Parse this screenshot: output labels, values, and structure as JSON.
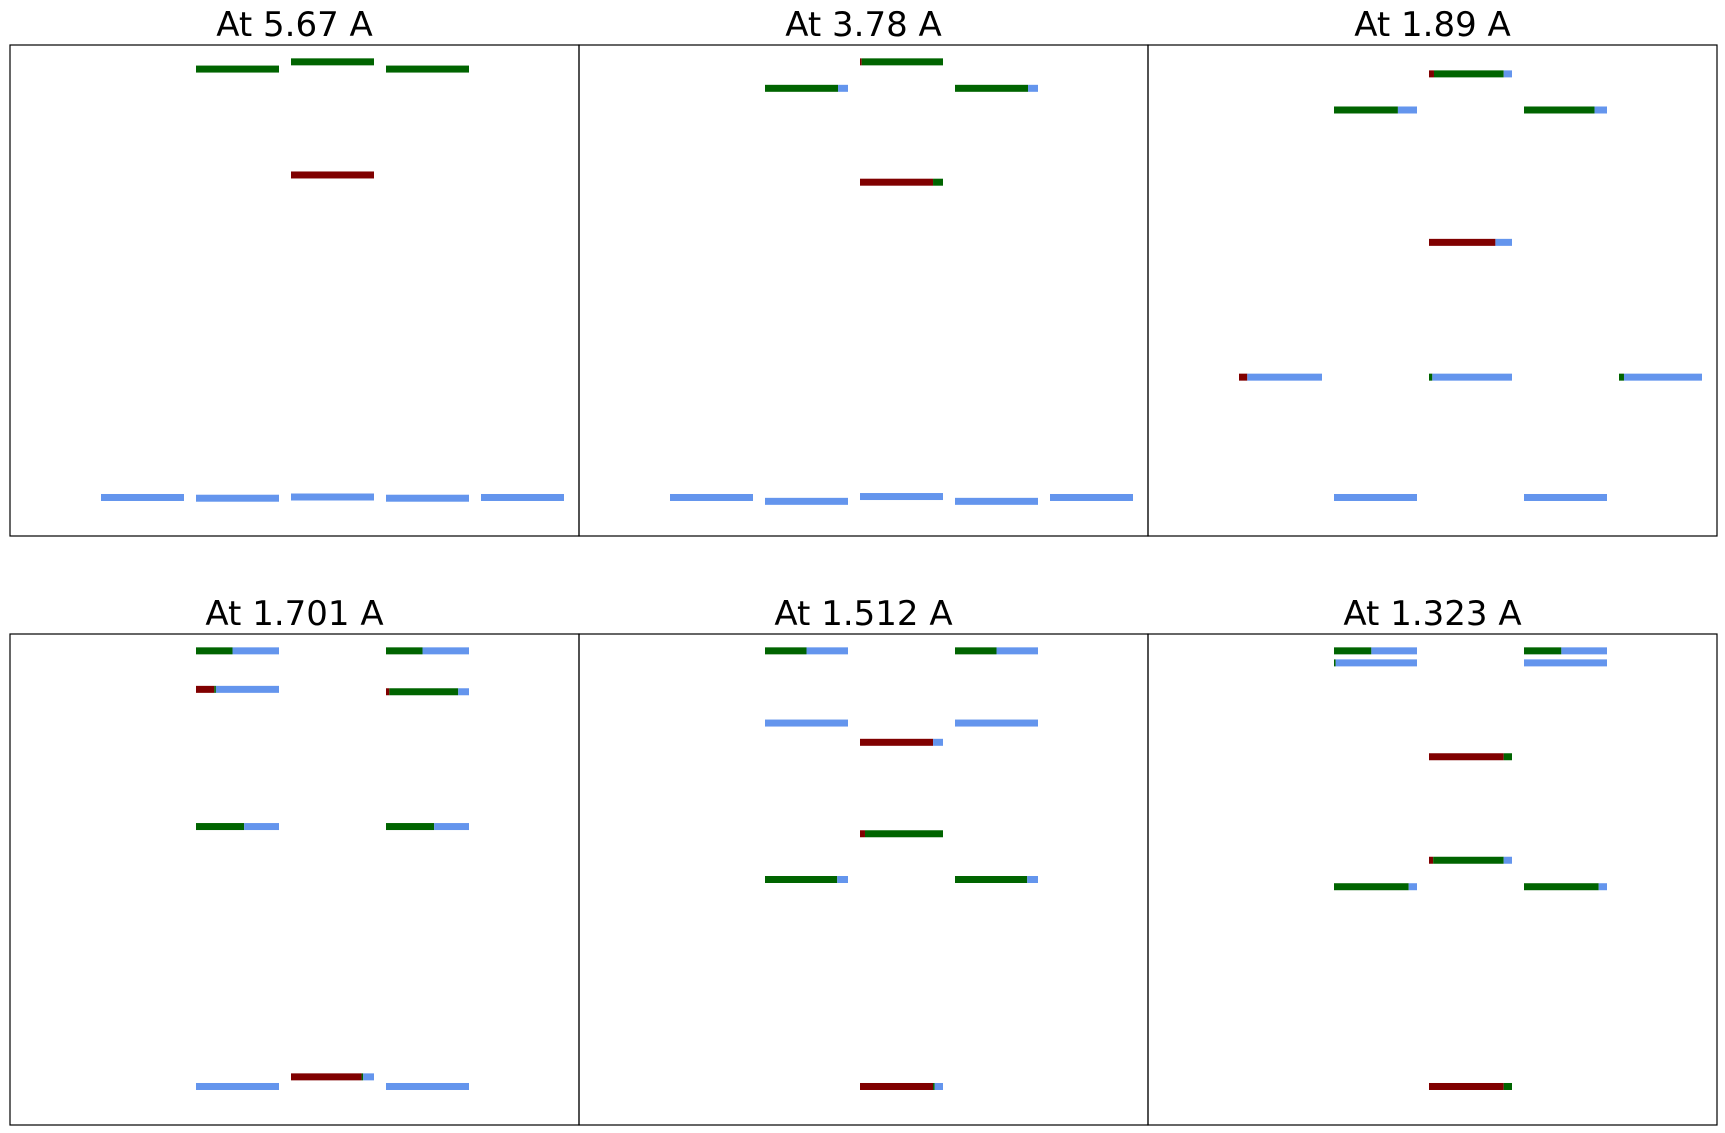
{
  "colors": {
    "red": "#800000",
    "green": "#006400",
    "blue": "#6495ED"
  },
  "chart_data": [
    {
      "type": "stacked-level-diagram",
      "title": "At 5.67 A",
      "levels": [
        {
          "slot": 1,
          "y": 0.0,
          "fractions": {
            "red": 0.0,
            "green": 0.0,
            "blue": 1.0
          }
        },
        {
          "slot": 2,
          "y": -0.015,
          "fractions": {
            "red": 0.0,
            "green": 0.0,
            "blue": 1.0
          }
        },
        {
          "slot": 3,
          "y": 0.01,
          "fractions": {
            "red": 0.0,
            "green": 0.0,
            "blue": 1.0
          }
        },
        {
          "slot": 4,
          "y": -0.015,
          "fractions": {
            "red": 0.0,
            "green": 0.0,
            "blue": 1.0
          }
        },
        {
          "slot": 5,
          "y": 0.0,
          "fractions": {
            "red": 0.0,
            "green": 0.0,
            "blue": 1.0
          }
        },
        {
          "slot": 3,
          "y": 6.7,
          "fractions": {
            "red": 1.0,
            "green": 0.0,
            "blue": 0.0
          }
        },
        {
          "slot": 2,
          "y": 8.9,
          "fractions": {
            "red": 0.0,
            "green": 1.0,
            "blue": 0.0
          }
        },
        {
          "slot": 3,
          "y": 9.05,
          "fractions": {
            "red": 0.0,
            "green": 1.0,
            "blue": 0.0
          }
        },
        {
          "slot": 4,
          "y": 8.9,
          "fractions": {
            "red": 0.0,
            "green": 1.0,
            "blue": 0.0
          }
        }
      ]
    },
    {
      "type": "stacked-level-diagram",
      "title": "At 3.78 A",
      "levels": [
        {
          "slot": 1,
          "y": 0.0,
          "fractions": {
            "red": 0.0,
            "green": 0.0,
            "blue": 1.0
          }
        },
        {
          "slot": 2,
          "y": -0.08,
          "fractions": {
            "red": 0.0,
            "green": 0.0,
            "blue": 1.0
          }
        },
        {
          "slot": 3,
          "y": 0.02,
          "fractions": {
            "red": 0.0,
            "green": 0.0,
            "blue": 1.0
          }
        },
        {
          "slot": 4,
          "y": -0.08,
          "fractions": {
            "red": 0.0,
            "green": 0.0,
            "blue": 1.0
          }
        },
        {
          "slot": 5,
          "y": 0.0,
          "fractions": {
            "red": 0.0,
            "green": 0.0,
            "blue": 1.0
          }
        },
        {
          "slot": 3,
          "y": 6.55,
          "fractions": {
            "red": 0.88,
            "green": 0.12,
            "blue": 0.0
          }
        },
        {
          "slot": 2,
          "y": 8.5,
          "fractions": {
            "red": 0.0,
            "green": 0.88,
            "blue": 0.12
          }
        },
        {
          "slot": 4,
          "y": 8.5,
          "fractions": {
            "red": 0.0,
            "green": 0.88,
            "blue": 0.12
          }
        },
        {
          "slot": 3,
          "y": 9.05,
          "fractions": {
            "red": 0.02,
            "green": 0.98,
            "blue": 0.0
          }
        }
      ]
    },
    {
      "type": "stacked-level-diagram",
      "title": "At 1.89 A",
      "levels": [
        {
          "slot": 2,
          "y": 0.0,
          "fractions": {
            "red": 0.0,
            "green": 0.0,
            "blue": 1.0
          }
        },
        {
          "slot": 4,
          "y": 0.0,
          "fractions": {
            "red": 0.0,
            "green": 0.0,
            "blue": 1.0
          }
        },
        {
          "slot": 1,
          "y": 2.5,
          "fractions": {
            "red": 0.1,
            "green": 0.0,
            "blue": 0.9
          }
        },
        {
          "slot": 3,
          "y": 2.5,
          "fractions": {
            "red": 0.0,
            "green": 0.04,
            "blue": 0.96
          }
        },
        {
          "slot": 5,
          "y": 2.5,
          "fractions": {
            "red": 0.0,
            "green": 0.06,
            "blue": 0.94
          }
        },
        {
          "slot": 3,
          "y": 5.3,
          "fractions": {
            "red": 0.8,
            "green": 0.0,
            "blue": 0.2
          }
        },
        {
          "slot": 2,
          "y": 8.05,
          "fractions": {
            "red": 0.0,
            "green": 0.77,
            "blue": 0.23
          }
        },
        {
          "slot": 4,
          "y": 8.05,
          "fractions": {
            "red": 0.0,
            "green": 0.85,
            "blue": 0.15
          }
        },
        {
          "slot": 3,
          "y": 8.8,
          "fractions": {
            "red": 0.06,
            "green": 0.84,
            "blue": 0.1
          }
        }
      ]
    },
    {
      "type": "stacked-level-diagram",
      "title": "At 1.701 A",
      "levels": [
        {
          "slot": 2,
          "y": 0.0,
          "fractions": {
            "red": 0.0,
            "green": 0.0,
            "blue": 1.0
          }
        },
        {
          "slot": 4,
          "y": 0.0,
          "fractions": {
            "red": 0.0,
            "green": 0.0,
            "blue": 1.0
          }
        },
        {
          "slot": 3,
          "y": 0.2,
          "fractions": {
            "red": 0.85,
            "green": 0.02,
            "blue": 0.13
          }
        },
        {
          "slot": 2,
          "y": 5.4,
          "fractions": {
            "red": 0.0,
            "green": 0.58,
            "blue": 0.42
          }
        },
        {
          "slot": 4,
          "y": 5.4,
          "fractions": {
            "red": 0.0,
            "green": 0.58,
            "blue": 0.42
          }
        },
        {
          "slot": 2,
          "y": 8.25,
          "fractions": {
            "red": 0.22,
            "green": 0.02,
            "blue": 0.76
          }
        },
        {
          "slot": 4,
          "y": 8.2,
          "fractions": {
            "red": 0.04,
            "green": 0.83,
            "blue": 0.13
          }
        },
        {
          "slot": 2,
          "y": 9.05,
          "fractions": {
            "red": 0.0,
            "green": 0.44,
            "blue": 0.56
          }
        },
        {
          "slot": 4,
          "y": 9.05,
          "fractions": {
            "red": 0.0,
            "green": 0.44,
            "blue": 0.56
          }
        }
      ]
    },
    {
      "type": "stacked-level-diagram",
      "title": "At 1.512 A",
      "levels": [
        {
          "slot": 3,
          "y": 0.0,
          "fractions": {
            "red": 0.88,
            "green": 0.02,
            "blue": 0.1
          }
        },
        {
          "slot": 2,
          "y": 4.3,
          "fractions": {
            "red": 0.0,
            "green": 0.87,
            "blue": 0.13
          }
        },
        {
          "slot": 4,
          "y": 4.3,
          "fractions": {
            "red": 0.0,
            "green": 0.87,
            "blue": 0.13
          }
        },
        {
          "slot": 3,
          "y": 5.25,
          "fractions": {
            "red": 0.06,
            "green": 0.94,
            "blue": 0.0
          }
        },
        {
          "slot": 3,
          "y": 7.15,
          "fractions": {
            "red": 0.88,
            "green": 0.0,
            "blue": 0.12
          }
        },
        {
          "slot": 2,
          "y": 7.55,
          "fractions": {
            "red": 0.0,
            "green": 0.0,
            "blue": 1.0
          }
        },
        {
          "slot": 4,
          "y": 7.55,
          "fractions": {
            "red": 0.0,
            "green": 0.0,
            "blue": 1.0
          }
        },
        {
          "slot": 2,
          "y": 9.05,
          "fractions": {
            "red": 0.0,
            "green": 0.5,
            "blue": 0.5
          }
        },
        {
          "slot": 4,
          "y": 9.05,
          "fractions": {
            "red": 0.0,
            "green": 0.5,
            "blue": 0.5
          }
        }
      ]
    },
    {
      "type": "stacked-level-diagram",
      "title": "At 1.323 A",
      "levels": [
        {
          "slot": 3,
          "y": 0.0,
          "fractions": {
            "red": 0.9,
            "green": 0.1,
            "blue": 0.0
          }
        },
        {
          "slot": 2,
          "y": 4.15,
          "fractions": {
            "red": 0.0,
            "green": 0.9,
            "blue": 0.1
          }
        },
        {
          "slot": 4,
          "y": 4.15,
          "fractions": {
            "red": 0.0,
            "green": 0.9,
            "blue": 0.1
          }
        },
        {
          "slot": 3,
          "y": 4.7,
          "fractions": {
            "red": 0.05,
            "green": 0.85,
            "blue": 0.1
          }
        },
        {
          "slot": 3,
          "y": 6.85,
          "fractions": {
            "red": 0.9,
            "green": 0.1,
            "blue": 0.0
          }
        },
        {
          "slot": 2,
          "y": 8.8,
          "fractions": {
            "red": 0.0,
            "green": 0.02,
            "blue": 0.98
          }
        },
        {
          "slot": 4,
          "y": 8.8,
          "fractions": {
            "red": 0.0,
            "green": 0.0,
            "blue": 1.0
          }
        },
        {
          "slot": 2,
          "y": 9.05,
          "fractions": {
            "red": 0.0,
            "green": 0.45,
            "blue": 0.55
          }
        },
        {
          "slot": 4,
          "y": 9.05,
          "fractions": {
            "red": 0.0,
            "green": 0.45,
            "blue": 0.55
          }
        }
      ]
    }
  ]
}
